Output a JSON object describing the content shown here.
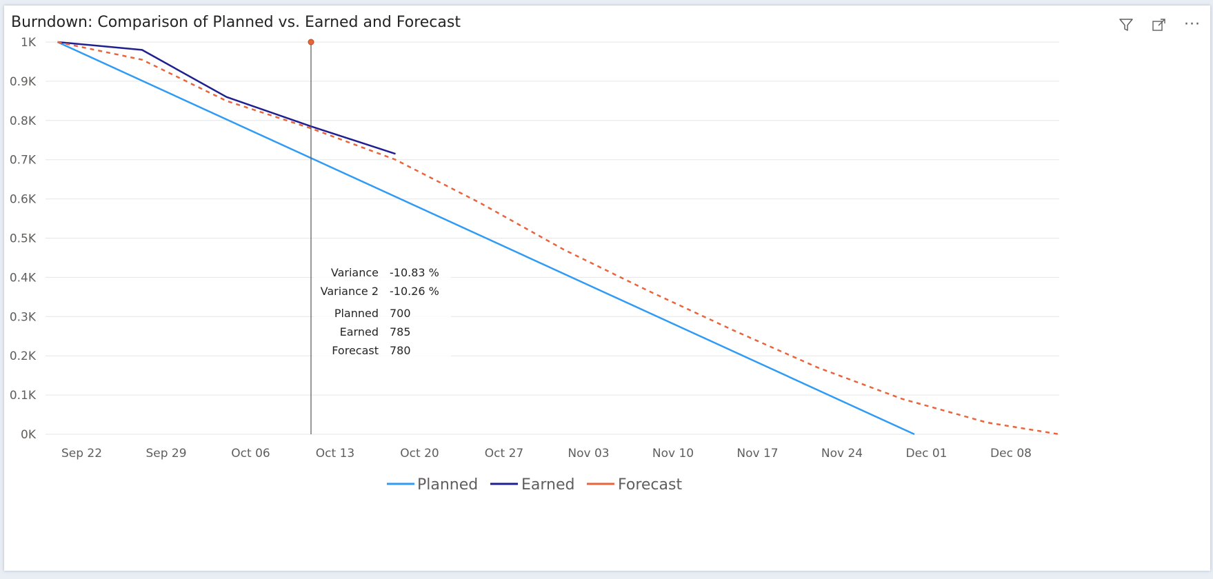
{
  "visual": {
    "title": "Burndown: Comparison of Planned vs. Earned and Forecast",
    "icons": [
      "filter-icon",
      "focus-mode-icon",
      "more-options-icon"
    ]
  },
  "chart_data": {
    "type": "line",
    "title": "Burndown: Comparison of Planned vs. Earned and Forecast",
    "xlabel": "",
    "ylabel": "",
    "x_range": [
      "2025-09-19",
      "2025-12-12"
    ],
    "ylim": [
      0,
      1000
    ],
    "y_ticks": [
      0,
      100,
      200,
      300,
      400,
      500,
      600,
      700,
      800,
      900,
      1000
    ],
    "y_tick_labels": [
      "0K",
      "0.1K",
      "0.2K",
      "0.3K",
      "0.4K",
      "0.5K",
      "0.6K",
      "0.7K",
      "0.8K",
      "0.9K",
      "1K"
    ],
    "x_ticks": [
      "2025-09-22",
      "2025-09-29",
      "2025-10-06",
      "2025-10-13",
      "2025-10-20",
      "2025-10-27",
      "2025-11-03",
      "2025-11-10",
      "2025-11-17",
      "2025-11-24",
      "2025-12-01",
      "2025-12-08"
    ],
    "x_tick_labels": [
      "Sep 22",
      "Sep 29",
      "Oct 06",
      "Oct 13",
      "Oct 20",
      "Oct 27",
      "Nov 03",
      "Nov 10",
      "Nov 17",
      "Nov 24",
      "Dec 01",
      "Dec 08"
    ],
    "grid": true,
    "legend_position": "bottom-center",
    "series": [
      {
        "name": "Planned",
        "color": "#2f9bf5",
        "style": "solid",
        "points": [
          [
            "2025-09-20",
            1000
          ],
          [
            "2025-11-30",
            0
          ]
        ]
      },
      {
        "name": "Earned",
        "color": "#1f1f8f",
        "style": "solid",
        "points": [
          [
            "2025-09-20",
            1000
          ],
          [
            "2025-09-27",
            980
          ],
          [
            "2025-10-04",
            860
          ],
          [
            "2025-10-11",
            785
          ],
          [
            "2025-10-18",
            715
          ]
        ]
      },
      {
        "name": "Forecast",
        "color": "#e8643a",
        "style": "dashed",
        "points": [
          [
            "2025-09-20",
            1000
          ],
          [
            "2025-09-27",
            955
          ],
          [
            "2025-10-04",
            850
          ],
          [
            "2025-10-11",
            780
          ],
          [
            "2025-10-18",
            700
          ],
          [
            "2025-10-25",
            590
          ],
          [
            "2025-11-01",
            470
          ],
          [
            "2025-11-08",
            365
          ],
          [
            "2025-11-15",
            265
          ],
          [
            "2025-11-22",
            170
          ],
          [
            "2025-11-29",
            90
          ],
          [
            "2025-12-06",
            30
          ],
          [
            "2025-12-12",
            0
          ]
        ]
      }
    ],
    "hover": {
      "date": "2025-10-11",
      "rows": [
        {
          "label": "Variance",
          "value": "-10.83 %"
        },
        {
          "label": "Variance 2",
          "value": "-10.26 %"
        },
        {
          "label": "Planned",
          "value": "700"
        },
        {
          "label": "Earned",
          "value": "785"
        },
        {
          "label": "Forecast",
          "value": "780"
        }
      ]
    }
  }
}
